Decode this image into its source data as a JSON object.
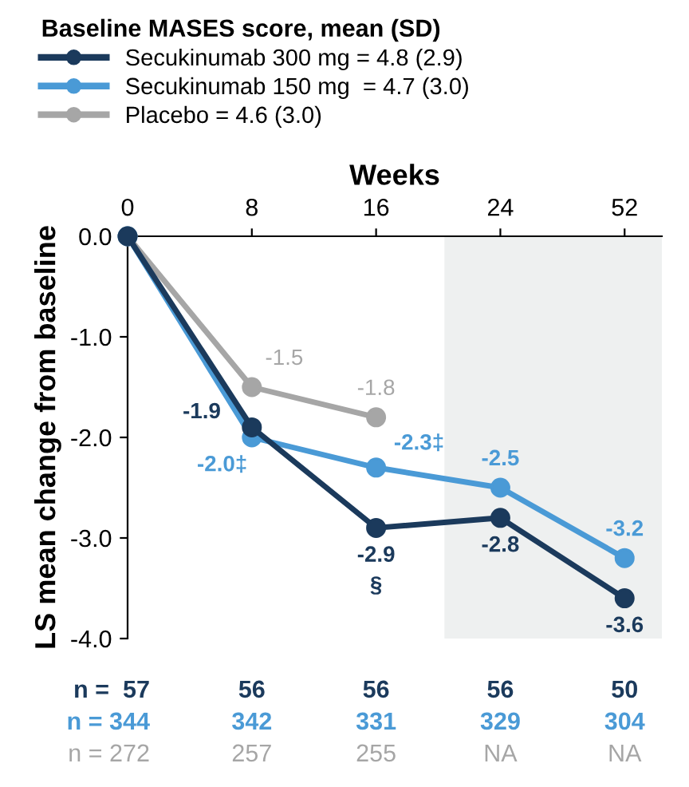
{
  "chart_data": {
    "type": "line",
    "xlabel": "Weeks",
    "ylabel": "LS mean change from baseline",
    "legend_title": "Baseline MASES score, mean (SD)",
    "categories": [
      "0",
      "8",
      "16",
      "24",
      "52"
    ],
    "series": [
      {
        "name": "Secukinumab 300 mg = 4.8 (2.9)",
        "color": "#1b3a5c",
        "values": [
          0.0,
          -1.9,
          -2.9,
          -2.8,
          -3.6
        ],
        "value_labels": [
          null,
          "-1.9",
          "-2.9\n§",
          "-2.8",
          "-3.6"
        ]
      },
      {
        "name": "Secukinumab 150 mg  = 4.7 (3.0)",
        "color": "#4a9ad6",
        "values": [
          0.0,
          -2.0,
          -2.3,
          -2.5,
          -3.2
        ],
        "value_labels": [
          null,
          "-2.0‡",
          "-2.3‡",
          "-2.5",
          "-3.2"
        ]
      },
      {
        "name": "Placebo = 4.6 (3.0)",
        "color": "#a6a6a6",
        "values": [
          0.0,
          -1.5,
          -1.8,
          null,
          null
        ],
        "value_labels": [
          null,
          "-1.5",
          "-1.8",
          null,
          null
        ]
      }
    ],
    "ylim": [
      -4.0,
      0.0
    ],
    "yticks": [
      {
        "value": 0.0,
        "label": "0.0"
      },
      {
        "value": -1.0,
        "label": "-1.0"
      },
      {
        "value": -2.0,
        "label": "-2.0"
      },
      {
        "value": -3.0,
        "label": "-3.0"
      },
      {
        "value": -4.0,
        "label": "-4.0"
      }
    ],
    "annotations": [
      "n =  57",
      "56",
      "56",
      "56",
      "50",
      "n = 344",
      "342",
      "331",
      "329",
      "304",
      "n = 272",
      "257",
      "255",
      "NA",
      "NA"
    ],
    "marker": "circle",
    "line_style": "solid",
    "legend": "top left",
    "grid": false
  }
}
